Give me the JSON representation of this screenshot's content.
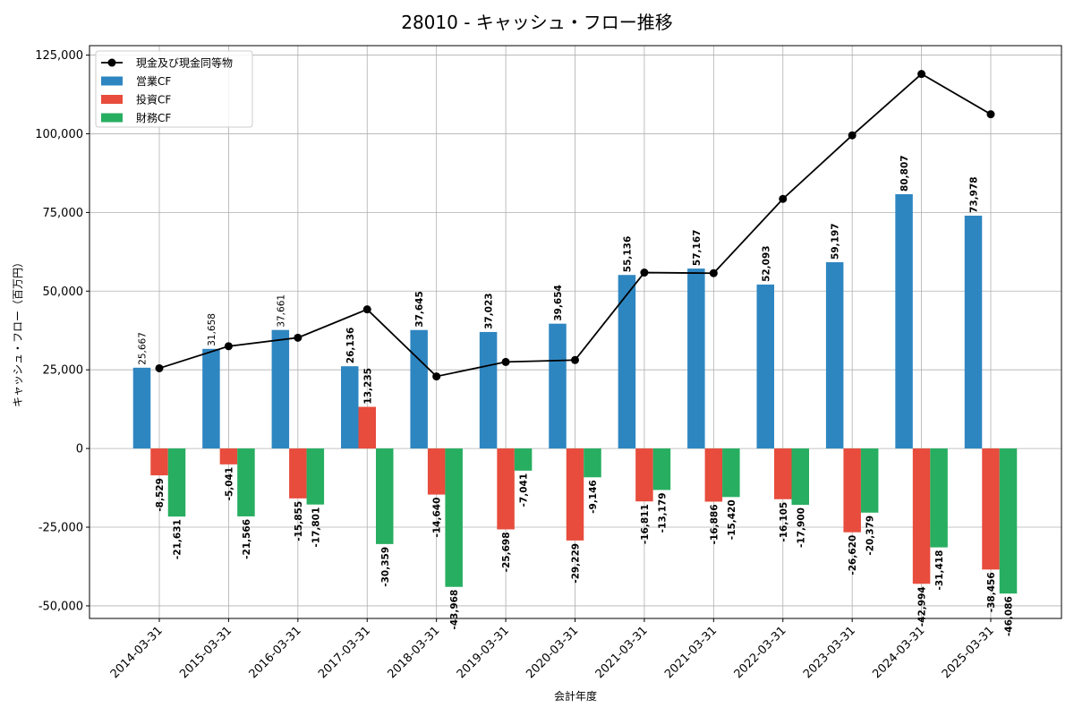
{
  "chart_data": {
    "type": "bar",
    "title": "28010 - キャッシュ・フロー推移",
    "xlabel": "会計年度",
    "ylabel": "キャッシュ・フロー（百万円）",
    "ylim": [
      -54000,
      128000
    ],
    "yticks": [
      -50000,
      -25000,
      0,
      25000,
      50000,
      75000,
      100000,
      125000
    ],
    "ytick_labels": [
      "-50,000",
      "-25,000",
      "0",
      "25,000",
      "50,000",
      "75,000",
      "100,000",
      "125,000"
    ],
    "grid": true,
    "legend_position": "top-left",
    "categories": [
      "2014-03-31",
      "2015-03-31",
      "2016-03-31",
      "2017-03-31",
      "2018-03-31",
      "2019-03-31",
      "2020-03-31",
      "2021-03-31",
      "2021-03-31",
      "2022-03-31",
      "2023-03-31",
      "2024-03-31",
      "2025-03-31"
    ],
    "series": [
      {
        "name": "営業CF",
        "type": "bar",
        "color": "#2e86c1",
        "values": [
          25667,
          31658,
          37661,
          26136,
          37645,
          37023,
          39654,
          55136,
          57167,
          52093,
          59197,
          80807,
          73978
        ],
        "labels": [
          "25,667",
          "31,658",
          "37,661",
          "26,136",
          "37,645",
          "37,023",
          "39,654",
          "55,136",
          "57,167",
          "52,093",
          "59,197",
          "80,807",
          "73,978"
        ]
      },
      {
        "name": "投資CF",
        "type": "bar",
        "color": "#e74c3c",
        "values": [
          -8529,
          -5041,
          -15855,
          13235,
          -14640,
          -25698,
          -29229,
          -16811,
          -16886,
          -16105,
          -26620,
          -42994,
          -38456
        ],
        "labels": [
          "-8,529",
          "-5,041",
          "-15,855",
          "13,235",
          "-14,640",
          "-25,698",
          "-29,229",
          "-16,811",
          "-16,886",
          "-16,105",
          "-26,620",
          "-42,994",
          "-38,456"
        ]
      },
      {
        "name": "財務CF",
        "type": "bar",
        "color": "#27ae60",
        "values": [
          -21631,
          -21566,
          -17801,
          -30359,
          -43968,
          -7041,
          -9146,
          -13179,
          -15420,
          -17900,
          -20379,
          -31418,
          -46086
        ],
        "labels": [
          "-21,631",
          "-21,566",
          "-17,801",
          "-30,359",
          "-43,968",
          "-7,041",
          "-9,146",
          "-13,179",
          "-15,420",
          "-17,900",
          "-20,379",
          "-31,418",
          "-46,086"
        ]
      },
      {
        "name": "現金及び現金同等物",
        "type": "line",
        "color": "#000000",
        "values": [
          25500,
          32500,
          35200,
          44200,
          22900,
          27500,
          28100,
          55900,
          55700,
          79300,
          99500,
          119000,
          106200
        ]
      }
    ]
  }
}
